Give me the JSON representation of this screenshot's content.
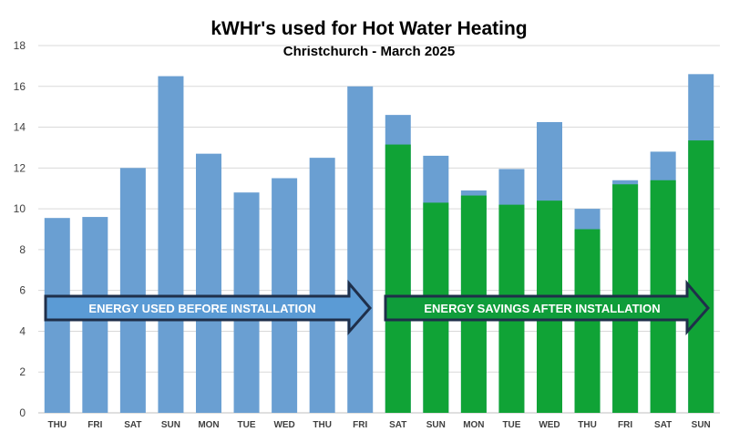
{
  "chart_data": {
    "type": "bar",
    "title": "kWHr's used for Hot Water Heating",
    "subtitle": "Christchurch - March 2025",
    "ylim": [
      0,
      18
    ],
    "yticks": [
      "0",
      "2",
      "4",
      "6",
      "8",
      "10",
      "12",
      "14",
      "16",
      "18"
    ],
    "grid": true,
    "categories": [
      "THU",
      "FRI",
      "SAT",
      "SUN",
      "MON",
      "TUE",
      "WED",
      "THU",
      "FRI",
      "SAT",
      "SUN",
      "MON",
      "TUE",
      "WED",
      "THU",
      "FRI",
      "SAT",
      "SUN"
    ],
    "series": [
      {
        "values": [
          9.55,
          9.6,
          12.0,
          16.5,
          12.7,
          10.8,
          11.5,
          12.5,
          16.0,
          14.6,
          12.6,
          10.9,
          11.95,
          14.25,
          10.0,
          11.4,
          12.8,
          16.6
        ]
      },
      {
        "values": [
          null,
          null,
          null,
          null,
          null,
          null,
          null,
          null,
          null,
          13.15,
          10.3,
          10.65,
          10.2,
          10.4,
          9.0,
          11.2,
          11.4,
          13.35
        ]
      }
    ],
    "colors": {
      "before": "#6a9fd2",
      "after": "#10a336",
      "arrow_before": "#5b9bd5",
      "arrow_after": "#0f9d3a",
      "arrow_border": "#1f2f4a",
      "grid": "#d9d9d9"
    },
    "annotations": [
      {
        "text": "ENERGY USED BEFORE INSTALLATION"
      },
      {
        "text": "ENERGY SAVINGS AFTER INSTALLATION"
      }
    ]
  }
}
